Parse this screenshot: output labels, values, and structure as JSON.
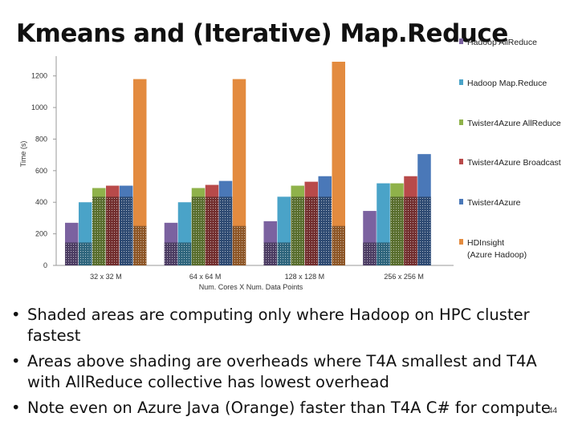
{
  "title": "Kmeans and (Iterative) Map.Reduce",
  "bullets": [
    "Shaded areas are computing only where Hadoop on HPC cluster fastest",
    "Areas above shading are overheads where T4A smallest and T4A with AllReduce collective has lowest overhead",
    "Note even on Azure Java (Orange) faster than T4A C# for compute"
  ],
  "page_number": "44",
  "chart_data": {
    "type": "bar",
    "xlabel": "Num. Cores X Num. Data Points",
    "ylabel": "Time (s)",
    "ylim": [
      0,
      1300
    ],
    "yticks": [
      0,
      200,
      400,
      600,
      800,
      1000,
      1200
    ],
    "grid": false,
    "legend_position": "right",
    "categories": [
      "32 x 32 M",
      "64 x 64 M",
      "128 x 128 M",
      "256 x 256 M"
    ],
    "series": [
      {
        "name": "Hadoop AllReduce",
        "color": "#7b62a0",
        "values": [
          270,
          270,
          280,
          345
        ],
        "compute": [
          145,
          145,
          145,
          145
        ]
      },
      {
        "name": "Hadoop Map.Reduce",
        "color": "#4aa3c8",
        "values": [
          400,
          400,
          435,
          520
        ],
        "compute": [
          145,
          145,
          145,
          145
        ]
      },
      {
        "name": "Twister4Azure AllReduce",
        "color": "#8fb24a",
        "values": [
          490,
          490,
          505,
          520
        ],
        "compute": [
          435,
          435,
          435,
          435
        ]
      },
      {
        "name": "Twister4Azure Broadcast",
        "color": "#b84a4a",
        "values": [
          505,
          510,
          530,
          565
        ],
        "compute": [
          435,
          435,
          435,
          435
        ]
      },
      {
        "name": "Twister4Azure",
        "color": "#4a78b8",
        "values": [
          505,
          535,
          565,
          705
        ],
        "compute": [
          435,
          435,
          435,
          435
        ]
      },
      {
        "name": "HDInsight (Azure Hadoop)",
        "color": "#e38b3f",
        "values": [
          1180,
          1180,
          1290,
          null
        ],
        "compute": [
          250,
          250,
          250,
          null
        ]
      }
    ]
  }
}
